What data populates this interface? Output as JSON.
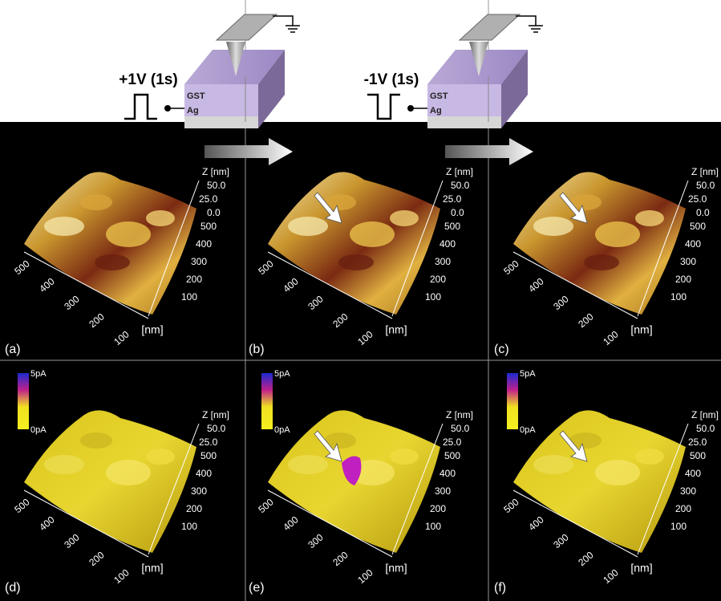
{
  "steps": [
    {
      "pulse": "+1V (1s)",
      "layers": [
        "GST",
        "Ag"
      ]
    },
    {
      "pulse": "-1V (1s)",
      "layers": [
        "GST",
        "Ag"
      ]
    }
  ],
  "panels": [
    {
      "label": "(a)",
      "z_label": "Z [nm]",
      "z_ticks": [
        "50.0",
        "25.0",
        "0.0"
      ],
      "right_ticks": [
        "500",
        "400",
        "300",
        "200",
        "100"
      ],
      "left_ticks": [
        "500",
        "400",
        "300",
        "200",
        "100"
      ],
      "unit": "[nm]"
    },
    {
      "label": "(b)",
      "z_label": "Z [nm]",
      "z_ticks": [
        "50.0",
        "25.0",
        "0.0"
      ],
      "right_ticks": [
        "500",
        "400",
        "300",
        "200",
        "100"
      ],
      "left_ticks": [
        "500",
        "400",
        "300",
        "200",
        "100"
      ],
      "unit": "[nm]"
    },
    {
      "label": "(c)",
      "z_label": "Z [nm]",
      "z_ticks": [
        "50.0",
        "25.0",
        "0.0"
      ],
      "right_ticks": [
        "500",
        "400",
        "300",
        "200",
        "100"
      ],
      "left_ticks": [
        "500",
        "400",
        "300",
        "200",
        "100"
      ],
      "unit": "[nm]"
    },
    {
      "label": "(d)",
      "z_label": "Z [nm]",
      "z_ticks": [
        "50.0",
        "25.0"
      ],
      "right_ticks": [
        "500",
        "400",
        "300",
        "200",
        "100"
      ],
      "left_ticks": [
        "500",
        "400",
        "300",
        "200",
        "100"
      ],
      "unit": "[nm]",
      "colorbar": {
        "max": "5pA",
        "min": "0pA"
      }
    },
    {
      "label": "(e)",
      "z_label": "Z [nm]",
      "z_ticks": [
        "50.0",
        "25.0"
      ],
      "right_ticks": [
        "500",
        "400",
        "300",
        "200",
        "100"
      ],
      "left_ticks": [
        "500",
        "400",
        "300",
        "200",
        "100"
      ],
      "unit": "[nm]",
      "colorbar": {
        "max": "5pA",
        "min": "0pA"
      }
    },
    {
      "label": "(f)",
      "z_label": "Z [nm]",
      "z_ticks": [
        "50.0",
        "25.0"
      ],
      "right_ticks": [
        "500",
        "400",
        "300",
        "200",
        "100"
      ],
      "left_ticks": [
        "500",
        "400",
        "300",
        "200",
        "100"
      ],
      "unit": "[nm]",
      "colorbar": {
        "max": "5pA",
        "min": "0pA"
      }
    }
  ]
}
